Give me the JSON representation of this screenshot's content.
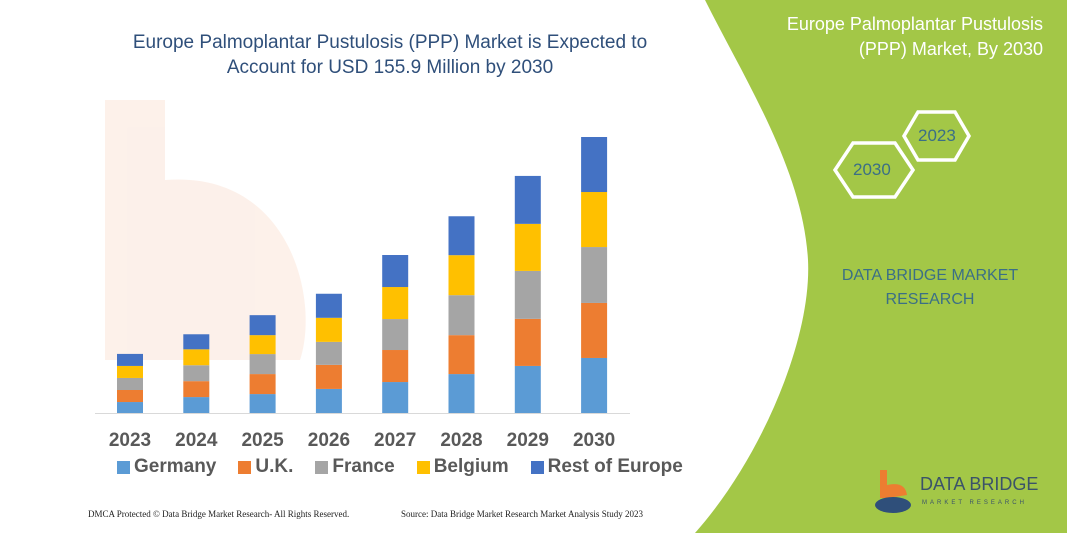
{
  "title": "Europe Palmoplantar Pustulosis (PPP) Market is Expected to Account for USD 155.9 Million by 2030",
  "side_panel": {
    "title": "Europe Palmoplantar Pustulosis (PPP) Market, By 2030",
    "hex_years": [
      "2023",
      "2030"
    ],
    "brand_text": "DATA BRIDGE MARKET RESEARCH",
    "logo_text": "DATA BRIDGE",
    "logo_subtext": "MARKET RESEARCH",
    "panel_color": "#a3c747"
  },
  "footer": {
    "left": "DMCA Protected © Data Bridge Market Research- All Rights Reserved.",
    "right": "Source: Data Bridge Market Research Market Analysis Study 2023"
  },
  "chart_data": {
    "type": "bar",
    "stacked": true,
    "title": "Europe Palmoplantar Pustulosis (PPP) Market is Expected to Account for USD 155.9 Million by 2030",
    "categories": [
      "2023",
      "2024",
      "2025",
      "2026",
      "2027",
      "2028",
      "2029",
      "2030"
    ],
    "series": [
      {
        "name": "Germany",
        "color": "#5b9bd5",
        "values": [
          6.2,
          9.0,
          10.7,
          13.6,
          17.5,
          22.0,
          26.6,
          31.1
        ]
      },
      {
        "name": "U.K.",
        "color": "#ed7d31",
        "values": [
          6.8,
          9.0,
          11.3,
          13.6,
          18.1,
          22.0,
          26.6,
          31.1
        ]
      },
      {
        "name": "France",
        "color": "#a5a5a5",
        "values": [
          6.8,
          9.0,
          11.3,
          13.0,
          17.5,
          22.6,
          27.1,
          31.6
        ]
      },
      {
        "name": "Belgium",
        "color": "#ffc000",
        "values": [
          6.8,
          9.0,
          10.7,
          13.6,
          18.1,
          22.6,
          26.6,
          31.1
        ]
      },
      {
        "name": "Rest of Europe",
        "color": "#4472c4",
        "values": [
          6.8,
          8.5,
          11.3,
          13.6,
          18.1,
          22.0,
          27.1,
          31.1
        ]
      }
    ],
    "ylim": [
      0,
      156
    ],
    "grid": false,
    "legend": "bottom",
    "xlabel": "",
    "ylabel": ""
  }
}
